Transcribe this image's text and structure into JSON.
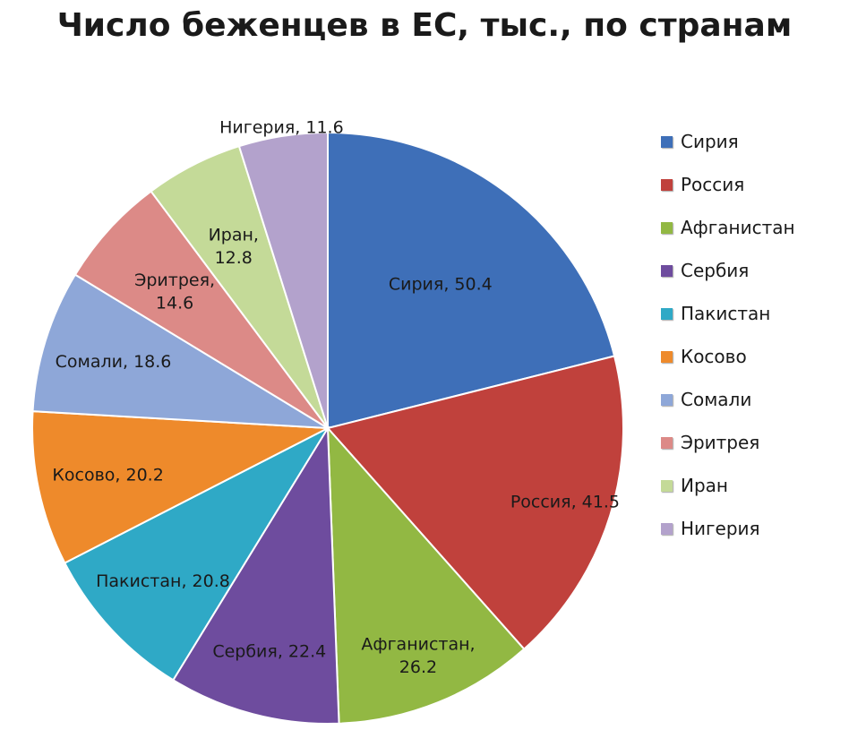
{
  "chart_data": {
    "type": "pie",
    "title": "Число беженцев в ЕС, тыс., по странам",
    "legend_position": "right",
    "slices": [
      {
        "name": "Сирия",
        "value": 50.4,
        "label": "Сирия, 50.4",
        "color": "#3E6FB8"
      },
      {
        "name": "Россия",
        "value": 41.5,
        "label": "Россия, 41.5",
        "color": "#C0413C"
      },
      {
        "name": "Афганистан",
        "value": 26.2,
        "label": "Афганистан, 26.2",
        "color": "#92B843"
      },
      {
        "name": "Сербия",
        "value": 22.4,
        "label": "Сербия, 22.4",
        "color": "#6E4C9E"
      },
      {
        "name": "Пакистан",
        "value": 20.8,
        "label": "Пакистан, 20.8",
        "color": "#2FA9C6"
      },
      {
        "name": "Косово",
        "value": 20.2,
        "label": "Косово, 20.2",
        "color": "#EE8A2B"
      },
      {
        "name": "Сомали",
        "value": 18.6,
        "label": "Сомали, 18.6",
        "color": "#8EA7D8"
      },
      {
        "name": "Эритрея",
        "value": 14.6,
        "label": "Эритрея, 14.6",
        "color": "#DC8A87"
      },
      {
        "name": "Иран",
        "value": 12.8,
        "label": "Иран, 12.8",
        "color": "#C4DA98"
      },
      {
        "name": "Нигерия",
        "value": 11.6,
        "label": "Нигерия, 11.6",
        "color": "#B3A2CC"
      }
    ]
  }
}
